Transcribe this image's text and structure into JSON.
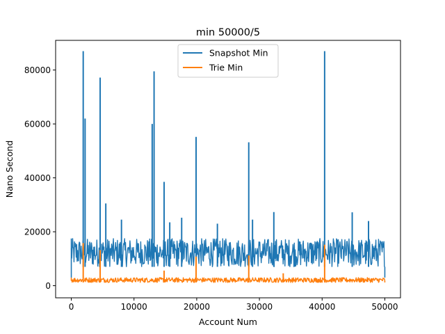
{
  "chart_data": {
    "type": "line",
    "title": "min 50000/5",
    "xlabel": "Account Num",
    "ylabel": "Nano Second",
    "xlim": [
      -2500,
      52500
    ],
    "ylim": [
      -4500,
      91000
    ],
    "xticks": [
      0,
      10000,
      20000,
      30000,
      40000,
      50000
    ],
    "xtick_labels": [
      "0",
      "10000",
      "20000",
      "30000",
      "40000",
      "50000"
    ],
    "yticks": [
      0,
      20000,
      40000,
      60000,
      80000
    ],
    "ytick_labels": [
      "0",
      "20000",
      "40000",
      "60000",
      "80000"
    ],
    "grid": false,
    "legend": "upper center",
    "series": [
      {
        "name": "Snapshot Min",
        "color": "#1f77b4",
        "band": {
          "low": 7000,
          "high": 17500,
          "x_start": 0,
          "x_end": 50000
        },
        "spikes": [
          {
            "x": 1900,
            "y": 87000
          },
          {
            "x": 2200,
            "y": 62000
          },
          {
            "x": 4600,
            "y": 77200
          },
          {
            "x": 5500,
            "y": 30500
          },
          {
            "x": 8000,
            "y": 24500
          },
          {
            "x": 12900,
            "y": 60000
          },
          {
            "x": 13200,
            "y": 79500
          },
          {
            "x": 14800,
            "y": 38500
          },
          {
            "x": 15700,
            "y": 23500
          },
          {
            "x": 17600,
            "y": 25200
          },
          {
            "x": 19900,
            "y": 55200
          },
          {
            "x": 23300,
            "y": 23000
          },
          {
            "x": 28300,
            "y": 53200
          },
          {
            "x": 28900,
            "y": 24500
          },
          {
            "x": 32300,
            "y": 27300
          },
          {
            "x": 40400,
            "y": 87000
          },
          {
            "x": 44800,
            "y": 27200
          },
          {
            "x": 47400,
            "y": 24000
          }
        ]
      },
      {
        "name": "Trie Min",
        "color": "#ff7f0e",
        "band": {
          "low": 1200,
          "high": 3000,
          "x_start": 0,
          "x_end": 50000
        },
        "spikes": [
          {
            "x": 1900,
            "y": 15800
          },
          {
            "x": 4600,
            "y": 13200
          },
          {
            "x": 14800,
            "y": 5600
          },
          {
            "x": 19900,
            "y": 10800
          },
          {
            "x": 28300,
            "y": 11200
          },
          {
            "x": 33800,
            "y": 4600
          },
          {
            "x": 40400,
            "y": 15200
          }
        ]
      }
    ]
  }
}
